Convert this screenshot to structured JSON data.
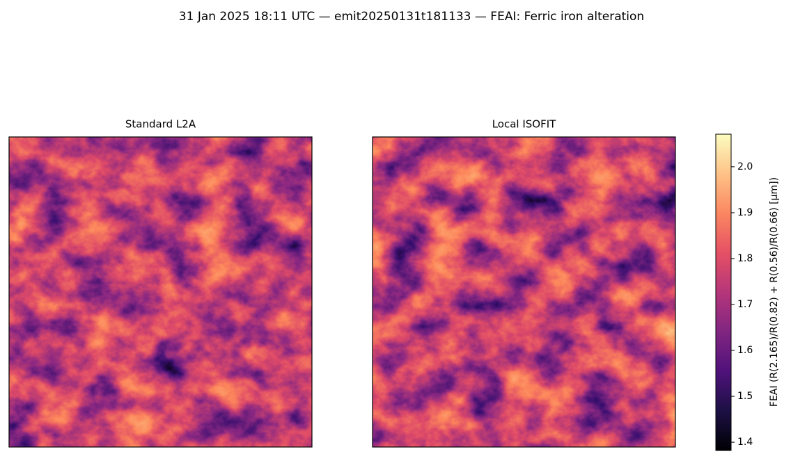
{
  "chart_data": {
    "type": "image",
    "title": "31 Jan 2025 18:11 UTC — emit20250131t181133 — FEAI: Ferric iron alteration",
    "panels": [
      {
        "title": "Standard L2A"
      },
      {
        "title": "Local ISOFIT"
      }
    ],
    "colorbar": {
      "label": "FEAI  (R(2.165)/R(0.82) + R(0.56)/R(0.66)  [µm])",
      "colormap": "magma",
      "lim": [
        1.382,
        2.071
      ],
      "ticks": [
        1.4,
        1.5,
        1.6,
        1.7,
        1.8,
        1.9,
        {
          "value": 2,
          "label": "2.0"
        }
      ]
    }
  }
}
